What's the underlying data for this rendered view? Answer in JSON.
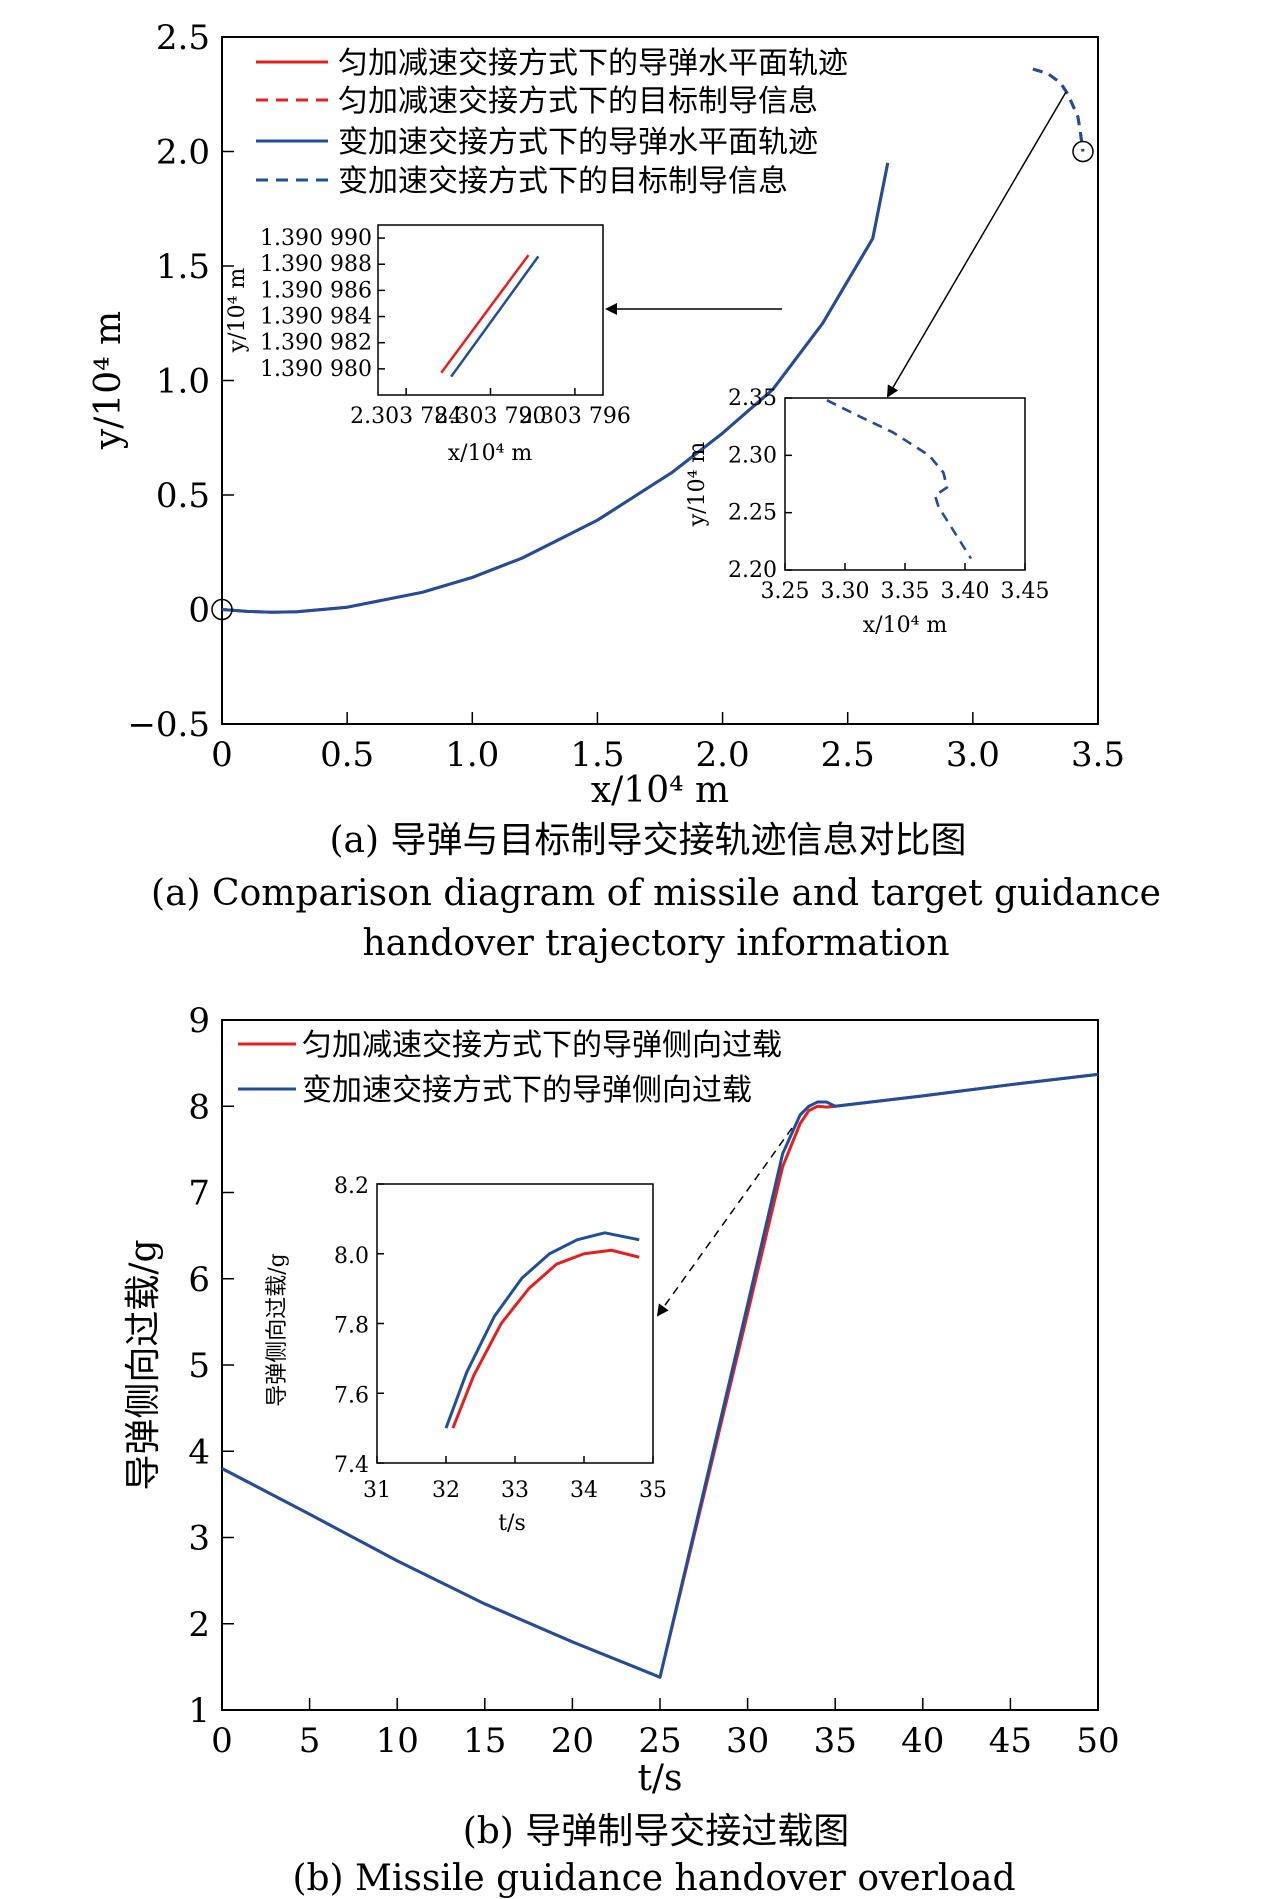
{
  "chart_data": [
    {
      "type": "line",
      "xlabel": "x/10⁴ m",
      "ylabel": "y/10⁴ m",
      "xlim": [
        0,
        3.5
      ],
      "ylim": [
        -0.5,
        2.5
      ],
      "x_ticks": [
        0,
        0.5,
        1.0,
        1.5,
        2.0,
        2.5,
        3.0,
        3.5
      ],
      "x_tick_labels": [
        "0",
        "0.5",
        "1.0",
        "1.5",
        "2.0",
        "2.5",
        "3.0",
        "3.5"
      ],
      "y_ticks": [
        -0.5,
        0,
        0.5,
        1.0,
        1.5,
        2.0,
        2.5
      ],
      "y_tick_labels": [
        "−0.5",
        "0",
        "0.5",
        "1.0",
        "1.5",
        "2.0",
        "2.5"
      ],
      "legend": [
        {
          "label": "匀加减速交接方式下的导弹水平面轨迹",
          "color": "#e32020",
          "dash": "solid"
        },
        {
          "label": "匀加减速交接方式下的目标制导信息",
          "color": "#e32020",
          "dash": "dashed"
        },
        {
          "label": "变加速交接方式下的导弹水平面轨迹",
          "color": "#1f4e9c",
          "dash": "solid"
        },
        {
          "label": "变加速交接方式下的目标制导信息",
          "color": "#1f4e9c",
          "dash": "dashed"
        }
      ],
      "series": [
        {
          "name": "匀加减速交接方式下的导弹水平面轨迹",
          "color": "#e32020",
          "style": "solid",
          "x": [
            0,
            0.1,
            0.2,
            0.3,
            0.5,
            0.8,
            1.0,
            1.2,
            1.5,
            1.8,
            2.0,
            2.2,
            2.4,
            2.6,
            2.66
          ],
          "y": [
            0,
            -0.008,
            -0.012,
            -0.01,
            0.01,
            0.075,
            0.14,
            0.225,
            0.39,
            0.6,
            0.77,
            0.96,
            1.25,
            1.62,
            1.95
          ]
        },
        {
          "name": "变加速交接方式下的导弹水平面轨迹",
          "color": "#1f4e9c",
          "style": "solid",
          "x": [
            0,
            0.1,
            0.2,
            0.3,
            0.5,
            0.8,
            1.0,
            1.2,
            1.5,
            1.8,
            2.0,
            2.2,
            2.4,
            2.6,
            2.66
          ],
          "y": [
            0,
            -0.008,
            -0.012,
            -0.01,
            0.01,
            0.075,
            0.14,
            0.225,
            0.39,
            0.6,
            0.77,
            0.96,
            1.25,
            1.62,
            1.95
          ]
        },
        {
          "name": "匀加减速交接方式下的目标制导信息",
          "color": "#e32020",
          "style": "dashed",
          "x": [
            3.24,
            3.3,
            3.35,
            3.38,
            3.4,
            3.42,
            3.43,
            3.44
          ],
          "y": [
            2.36,
            2.34,
            2.3,
            2.25,
            2.2,
            2.15,
            2.08,
            2.0
          ]
        },
        {
          "name": "变加速交接方式下的目标制导信息",
          "color": "#1f4e9c",
          "style": "dashed",
          "x": [
            3.24,
            3.3,
            3.35,
            3.38,
            3.4,
            3.42,
            3.43,
            3.44
          ],
          "y": [
            2.36,
            2.34,
            2.3,
            2.25,
            2.2,
            2.15,
            2.08,
            2.0
          ]
        }
      ],
      "insets": [
        {
          "xlabel": "x/10⁴ m",
          "ylabel": "y/10⁴ m",
          "xlim": [
            2.303782,
            2.303798
          ],
          "ylim": [
            1.390978,
            1.390991
          ],
          "x_ticks": [
            2.303784,
            2.30379,
            2.303796
          ],
          "x_tick_labels": [
            "2.303 784",
            "2.303 790",
            "2.303 796"
          ],
          "y_ticks": [
            1.39098,
            1.390982,
            1.390984,
            1.390986,
            1.390988,
            1.39099
          ],
          "y_tick_labels": [
            "1.390 980",
            "1.390 982",
            "1.390 984",
            "1.390 986",
            "1.390 988",
            "1.390 990"
          ],
          "series": [
            {
              "color": "#e32020",
              "x": [
                2.3037865,
                2.3037927
              ],
              "y": [
                1.3909797,
                1.3909887
              ]
            },
            {
              "color": "#1f4e9c",
              "x": [
                2.3037872,
                2.3037934
              ],
              "y": [
                1.3909794,
                1.3909886
              ]
            }
          ]
        },
        {
          "xlabel": "x/10⁴ m",
          "ylabel": "y/10⁴ m",
          "xlim": [
            3.25,
            3.45
          ],
          "ylim": [
            2.2,
            2.35
          ],
          "x_ticks": [
            3.25,
            3.3,
            3.35,
            3.4,
            3.45
          ],
          "x_tick_labels": [
            "3.25",
            "3.30",
            "3.35",
            "3.40",
            "3.45"
          ],
          "y_ticks": [
            2.2,
            2.25,
            2.3,
            2.35
          ],
          "y_tick_labels": [
            "2.20",
            "2.25",
            "2.30",
            "2.35"
          ],
          "series": [
            {
              "color": "#e32020",
              "style": "dashed",
              "x": [
                3.285,
                3.31,
                3.34,
                3.37,
                3.382,
                3.385,
                3.375,
                3.378
              ],
              "y": [
                2.348,
                2.335,
                2.32,
                2.3,
                2.285,
                2.272,
                2.265,
                2.255
              ]
            },
            {
              "color": "#1f4e9c",
              "style": "dashed",
              "x": [
                3.285,
                3.31,
                3.34,
                3.37,
                3.382,
                3.385,
                3.375,
                3.378,
                3.39,
                3.405
              ],
              "y": [
                2.348,
                2.335,
                2.32,
                2.3,
                2.285,
                2.272,
                2.265,
                2.255,
                2.235,
                2.21
              ]
            }
          ]
        }
      ]
    },
    {
      "type": "line",
      "xlabel": "t/s",
      "ylabel": "导弹侧向过载/g",
      "xlim": [
        0,
        50
      ],
      "ylim": [
        1,
        9
      ],
      "x_ticks": [
        0,
        5,
        10,
        15,
        20,
        25,
        30,
        35,
        40,
        45,
        50
      ],
      "x_tick_labels": [
        "0",
        "5",
        "10",
        "15",
        "20",
        "25",
        "30",
        "35",
        "40",
        "45",
        "50"
      ],
      "y_ticks": [
        1,
        2,
        3,
        4,
        5,
        6,
        7,
        8,
        9
      ],
      "y_tick_labels": [
        "1",
        "2",
        "3",
        "4",
        "5",
        "6",
        "7",
        "8",
        "9"
      ],
      "legend": [
        {
          "label": "匀加减速交接方式下的导弹侧向过载",
          "color": "#e32020"
        },
        {
          "label": "变加速交接方式下的导弹侧向过载",
          "color": "#1f4e9c"
        }
      ],
      "series": [
        {
          "name": "匀加减速交接方式下的导弹侧向过载",
          "color": "#e32020",
          "x": [
            0,
            5,
            10,
            15,
            20,
            25,
            30,
            32,
            33,
            33.5,
            34,
            34.5,
            35,
            40,
            45,
            50
          ],
          "y": [
            3.8,
            3.27,
            2.73,
            2.23,
            1.79,
            1.38,
            5.6,
            7.3,
            7.8,
            7.95,
            8.0,
            7.99,
            8.0,
            8.12,
            8.25,
            8.37
          ]
        },
        {
          "name": "变加速交接方式下的导弹侧向过载",
          "color": "#1f4e9c",
          "x": [
            0,
            5,
            10,
            15,
            20,
            25,
            30,
            32,
            33,
            33.5,
            34,
            34.5,
            35,
            40,
            45,
            50
          ],
          "y": [
            3.8,
            3.27,
            2.73,
            2.23,
            1.79,
            1.38,
            5.7,
            7.45,
            7.9,
            8.0,
            8.05,
            8.05,
            8.0,
            8.12,
            8.25,
            8.37
          ]
        }
      ],
      "insets": [
        {
          "xlabel": "t/s",
          "ylabel": "导弹侧向过载/g",
          "xlim": [
            31,
            35
          ],
          "ylim": [
            7.4,
            8.2
          ],
          "x_ticks": [
            31,
            32,
            33,
            34,
            35
          ],
          "x_tick_labels": [
            "31",
            "32",
            "33",
            "34",
            "35"
          ],
          "y_ticks": [
            7.4,
            7.6,
            7.8,
            8.0,
            8.2
          ],
          "y_tick_labels": [
            "7.4",
            "7.6",
            "7.8",
            "8.0",
            "8.2"
          ],
          "series": [
            {
              "color": "#e32020",
              "x": [
                32.1,
                32.4,
                32.8,
                33.2,
                33.6,
                34.0,
                34.4,
                34.8
              ],
              "y": [
                7.5,
                7.65,
                7.8,
                7.9,
                7.97,
                8.0,
                8.01,
                7.99
              ]
            },
            {
              "color": "#1f4e9c",
              "x": [
                32.0,
                32.3,
                32.7,
                33.1,
                33.5,
                33.9,
                34.3,
                34.8
              ],
              "y": [
                7.5,
                7.66,
                7.82,
                7.93,
                8.0,
                8.04,
                8.06,
                8.04
              ]
            }
          ]
        }
      ]
    }
  ],
  "captions": {
    "a_cn": "(a) 导弹与目标制导交接轨迹信息对比图",
    "a_en_1": "(a) Comparison diagram of missile and target guidance",
    "a_en_2": "handover trajectory information",
    "b_cn": "(b) 导弹制导交接过载图",
    "b_en": "(b) Missile guidance handover overload"
  }
}
